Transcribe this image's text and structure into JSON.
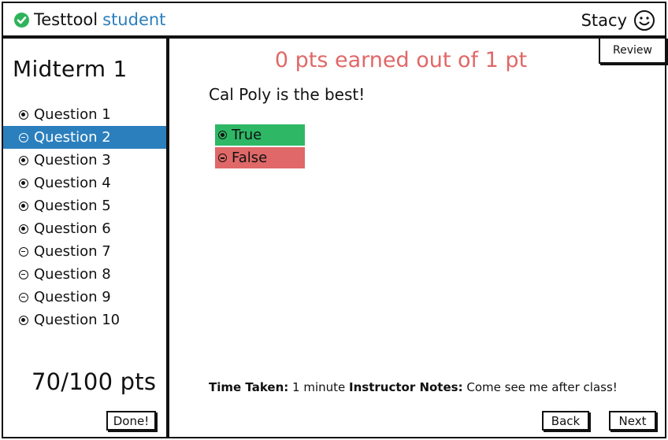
{
  "header": {
    "app_name": "Testtool",
    "role": "student",
    "user_name": "Stacy",
    "brand_icon": "check-circle-icon",
    "user_icon": "smiley-icon",
    "brand_color": "#2eb35a",
    "accent_color": "#2b7fbd"
  },
  "sidebar": {
    "exam_title": "Midterm 1",
    "questions": [
      {
        "label": "Question 1",
        "status": "answered"
      },
      {
        "label": "Question 2",
        "status": "unanswered",
        "active": true
      },
      {
        "label": "Question 3",
        "status": "answered"
      },
      {
        "label": "Question 4",
        "status": "answered"
      },
      {
        "label": "Question 5",
        "status": "answered"
      },
      {
        "label": "Question 6",
        "status": "answered"
      },
      {
        "label": "Question 7",
        "status": "unanswered"
      },
      {
        "label": "Question 8",
        "status": "unanswered"
      },
      {
        "label": "Question 9",
        "status": "unanswered"
      },
      {
        "label": "Question 10",
        "status": "answered"
      }
    ],
    "score": "70/100 pts",
    "done_label": "Done!"
  },
  "main": {
    "review_label": "Review",
    "points_text": "0 pts earned out of 1 pt",
    "question_text": "Cal Poly is the best!",
    "options": [
      {
        "label": "True",
        "selected": true,
        "color": "#2eb866"
      },
      {
        "label": "False",
        "selected": false,
        "color": "#e06868"
      }
    ],
    "time_taken_label": "Time Taken:",
    "time_taken_value": "1 minute",
    "notes_label": "Instructor Notes:",
    "notes_value": "Come see me after class!",
    "back_label": "Back",
    "next_label": "Next"
  }
}
